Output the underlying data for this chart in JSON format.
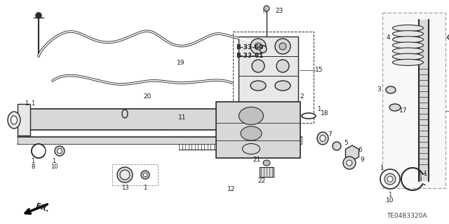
{
  "bg_color": "#ffffff",
  "fig_width": 6.4,
  "fig_height": 3.19,
  "dpi": 100,
  "diagram_code": "TE04B3320A",
  "b_labels": [
    "B-33-60",
    "B-33-61"
  ],
  "lc": "#2a2a2a",
  "tc": "#1a1a1a",
  "gray1": "#c0c0c0",
  "gray2": "#d8d8d8",
  "gray3": "#e8e8e8",
  "gray4": "#a0a0a0",
  "gray5": "#909090"
}
